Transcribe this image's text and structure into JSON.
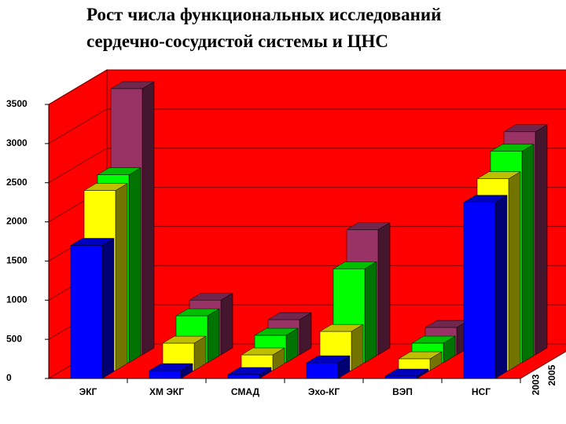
{
  "chart_data": {
    "type": "bar3d",
    "title": [
      "Рост числа функциональных исследований",
      "сердечно-сосудистой системы и ЦНС"
    ],
    "categories": [
      "ЭКГ",
      "ХМ ЭКГ",
      "СМАД",
      "Эхо-КГ",
      "ВЭП",
      "НСГ"
    ],
    "series": [
      {
        "name": null,
        "color": "#0000ff",
        "values": [
          1700,
          100,
          50,
          200,
          30,
          2250
        ]
      },
      {
        "name": "2003",
        "color": "#ffff00",
        "values": [
          2300,
          350,
          200,
          500,
          150,
          2450
        ]
      },
      {
        "name": null,
        "color": "#00ff00",
        "values": [
          2400,
          600,
          350,
          1200,
          250,
          2700
        ]
      },
      {
        "name": "2005",
        "color": "#993366",
        "values": [
          3400,
          700,
          450,
          1600,
          350,
          2850
        ]
      }
    ],
    "ylim": [
      0,
      3500
    ],
    "yticks": [
      0,
      500,
      1000,
      1500,
      2000,
      2500,
      3000,
      3500
    ],
    "grid": true
  }
}
